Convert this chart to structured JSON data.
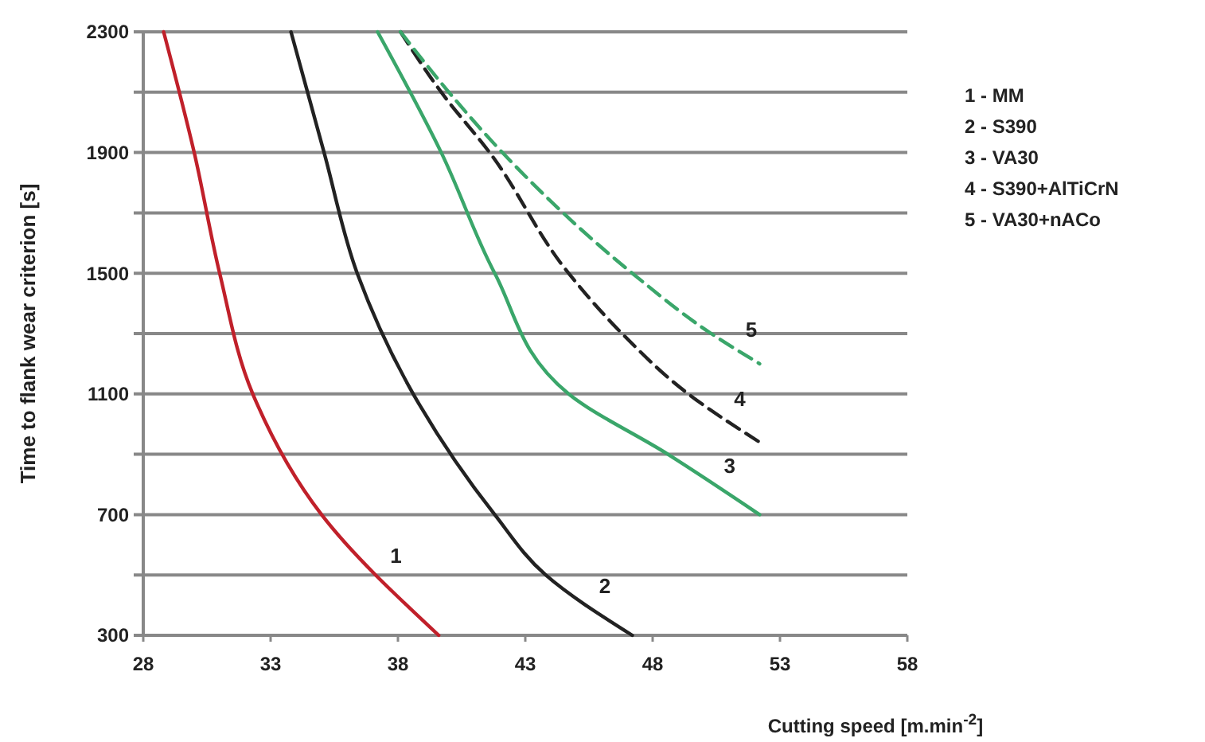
{
  "chart_data": {
    "type": "line",
    "xlabel": "Cutting speed [m.min$^{-2}$]",
    "ylabel": "Time to flank wear criterion [s]",
    "xlim": [
      28,
      58
    ],
    "xticks": [
      28,
      33,
      38,
      43,
      48,
      53,
      58
    ],
    "ylim": [
      300,
      2300
    ],
    "yticks": [
      300,
      {
        "value": 500,
        "label": null
      },
      700,
      {
        "value": 900,
        "label": null
      },
      1100,
      {
        "value": 1300,
        "label": null
      },
      1500,
      {
        "value": 1700,
        "label": null
      },
      1900,
      {
        "value": 2100,
        "label": null
      },
      2300
    ],
    "grid": "y",
    "marker": "none",
    "series": [
      {
        "name": "1",
        "color": "#c0202a",
        "line_style": "solid",
        "x": [
          28.8,
          30.0,
          31.0,
          32.3,
          35.0,
          39.6
        ],
        "values": [
          2300,
          1900,
          1500,
          1100,
          700,
          300
        ]
      },
      {
        "name": "2",
        "color": "#222222",
        "line_style": "solid",
        "x": [
          33.8,
          35.1,
          36.4,
          38.6,
          41.8,
          43.8,
          47.2
        ],
        "values": [
          2300,
          1900,
          1500,
          1100,
          700,
          500,
          300
        ]
      },
      {
        "name": "3",
        "color": "#3aa66a",
        "line_style": "solid",
        "x": [
          37.2,
          39.7,
          41.8,
          44.7,
          48.6,
          52.2
        ],
        "values": [
          2300,
          1900,
          1500,
          1100,
          900,
          700
        ]
      },
      {
        "name": "4",
        "color": "#222222",
        "line_style": "dashed",
        "x": [
          38.1,
          39.7,
          41.6,
          44.7,
          46.8,
          49.4,
          52.2
        ],
        "values": [
          2300,
          2100,
          1900,
          1500,
          1300,
          1100,
          940
        ]
      },
      {
        "name": "5",
        "color": "#3aa66a",
        "line_style": "dashed",
        "x": [
          38.1,
          40.0,
          42.1,
          47.2,
          50.3,
          52.2
        ],
        "values": [
          2300,
          2100,
          1900,
          1500,
          1300,
          1200
        ]
      }
    ],
    "annotations": [
      "1 - MM",
      "2 - S390",
      "3 - VA30",
      "4 - S390+AlTiCrN",
      "5 - VA30+nACo"
    ]
  }
}
